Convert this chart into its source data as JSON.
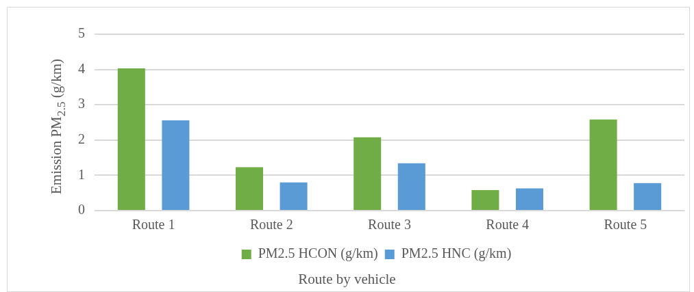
{
  "chart_data": {
    "type": "bar",
    "xlabel": "Route by vehicle",
    "ylabel": "Emission PM$_{2.5}$ (g/km)",
    "categories": [
      "Route 1",
      "Route 2",
      "Route 3",
      "Route 4",
      "Route 5"
    ],
    "series": [
      {
        "name": "PM2.5 HCON (g/km)",
        "color": "#70ad47",
        "values": [
          4.03,
          1.23,
          2.08,
          0.58,
          2.58
        ]
      },
      {
        "name": "PM2.5 HNC (g/km)",
        "color": "#5b9bd5",
        "values": [
          2.56,
          0.8,
          1.34,
          0.63,
          0.78
        ]
      }
    ],
    "ylim": [
      0,
      5
    ],
    "yticks": [
      0,
      1,
      2,
      3,
      4,
      5
    ],
    "grid": "y",
    "legend": "bottom"
  }
}
